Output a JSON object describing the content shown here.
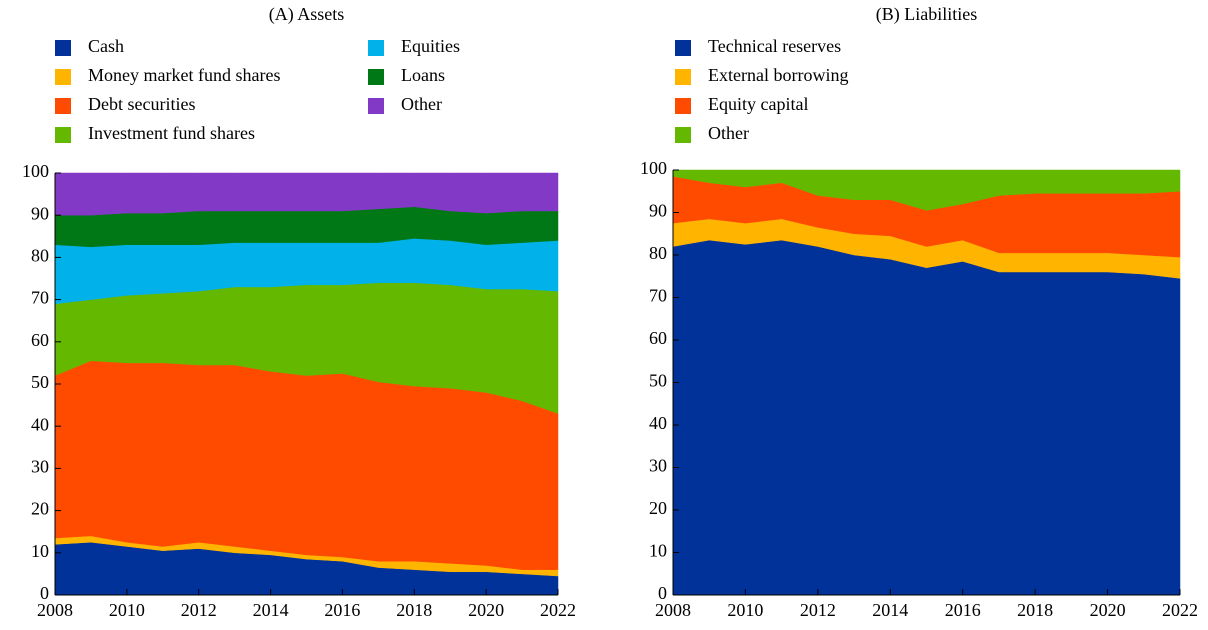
{
  "chart_data": [
    {
      "type": "stacked_area",
      "title": "(A) Assets",
      "x": [
        2008,
        2009,
        2010,
        2011,
        2012,
        2013,
        2014,
        2015,
        2016,
        2017,
        2018,
        2019,
        2020,
        2021,
        2022
      ],
      "xlim": [
        2008,
        2022
      ],
      "xticks": [
        2008,
        2010,
        2012,
        2014,
        2016,
        2018,
        2020,
        2022
      ],
      "ylim": [
        0,
        100
      ],
      "yticks": [
        0,
        10,
        20,
        30,
        40,
        50,
        60,
        70,
        80,
        90,
        100
      ],
      "series": [
        {
          "name": "Cash",
          "color": "#003299",
          "values": [
            12,
            12.5,
            11.5,
            10.5,
            11,
            10,
            9.5,
            8.5,
            8,
            6.5,
            6,
            5.5,
            5.5,
            5,
            4.5
          ]
        },
        {
          "name": "Money market fund shares",
          "color": "#ffb400",
          "values": [
            1.5,
            1.5,
            1,
            1,
            1.5,
            1.5,
            1,
            1,
            1,
            1.5,
            2,
            2,
            1.5,
            1,
            1.5
          ]
        },
        {
          "name": "Debt securities",
          "color": "#ff4b00",
          "values": [
            38.5,
            41.5,
            42.5,
            43.5,
            42,
            43,
            42.5,
            42.5,
            43.5,
            42.5,
            41.5,
            41.5,
            41,
            40,
            37
          ]
        },
        {
          "name": "Investment fund shares",
          "color": "#65b800",
          "values": [
            17,
            14.5,
            16,
            16.5,
            17.5,
            18.5,
            20,
            21.5,
            21,
            23.5,
            24.5,
            24.5,
            24.5,
            26.5,
            29
          ]
        },
        {
          "name": "Equities",
          "color": "#00b1ea",
          "values": [
            14,
            12.5,
            12,
            11.5,
            11,
            10.5,
            10.5,
            10,
            10,
            9.5,
            10.5,
            10.5,
            10.5,
            11,
            12
          ]
        },
        {
          "name": "Loans",
          "color": "#007816",
          "values": [
            7,
            7.5,
            7.5,
            7.5,
            8,
            7.5,
            7.5,
            7.5,
            7.5,
            8,
            7.5,
            7,
            7.5,
            7.5,
            7
          ]
        },
        {
          "name": "Other",
          "color": "#8139c6",
          "values": [
            10,
            10,
            9.5,
            9.5,
            9,
            9,
            9,
            9,
            9,
            8.5,
            8,
            9,
            9.5,
            9,
            9
          ]
        }
      ]
    },
    {
      "type": "stacked_area",
      "title": "(B) Liabilities",
      "x": [
        2008,
        2009,
        2010,
        2011,
        2012,
        2013,
        2014,
        2015,
        2016,
        2017,
        2018,
        2019,
        2020,
        2021,
        2022
      ],
      "xlim": [
        2008,
        2022
      ],
      "xticks": [
        2008,
        2010,
        2012,
        2014,
        2016,
        2018,
        2020,
        2022
      ],
      "ylim": [
        0,
        100
      ],
      "yticks": [
        0,
        10,
        20,
        30,
        40,
        50,
        60,
        70,
        80,
        90,
        100
      ],
      "series": [
        {
          "name": "Technical reserves",
          "color": "#003299",
          "values": [
            82,
            83.5,
            82.5,
            83.5,
            82,
            80,
            79,
            77,
            78.5,
            76,
            76,
            76,
            76,
            75.5,
            74.5
          ]
        },
        {
          "name": "External borrowing",
          "color": "#ffb400",
          "values": [
            5.5,
            5,
            5,
            5,
            4.5,
            5,
            5.5,
            5,
            5,
            4.5,
            4.5,
            4.5,
            4.5,
            4.5,
            5
          ]
        },
        {
          "name": "Equity capital",
          "color": "#ff4b00",
          "values": [
            11,
            8.5,
            8.5,
            8.5,
            7.5,
            8,
            8.5,
            8.5,
            8.5,
            13.5,
            14,
            14,
            14,
            14.5,
            15.5
          ]
        },
        {
          "name": "Other",
          "color": "#65b800",
          "values": [
            1.5,
            3,
            4,
            3,
            6,
            7,
            7,
            9.5,
            8,
            6,
            5.5,
            5.5,
            5.5,
            5.5,
            5
          ]
        }
      ]
    }
  ]
}
